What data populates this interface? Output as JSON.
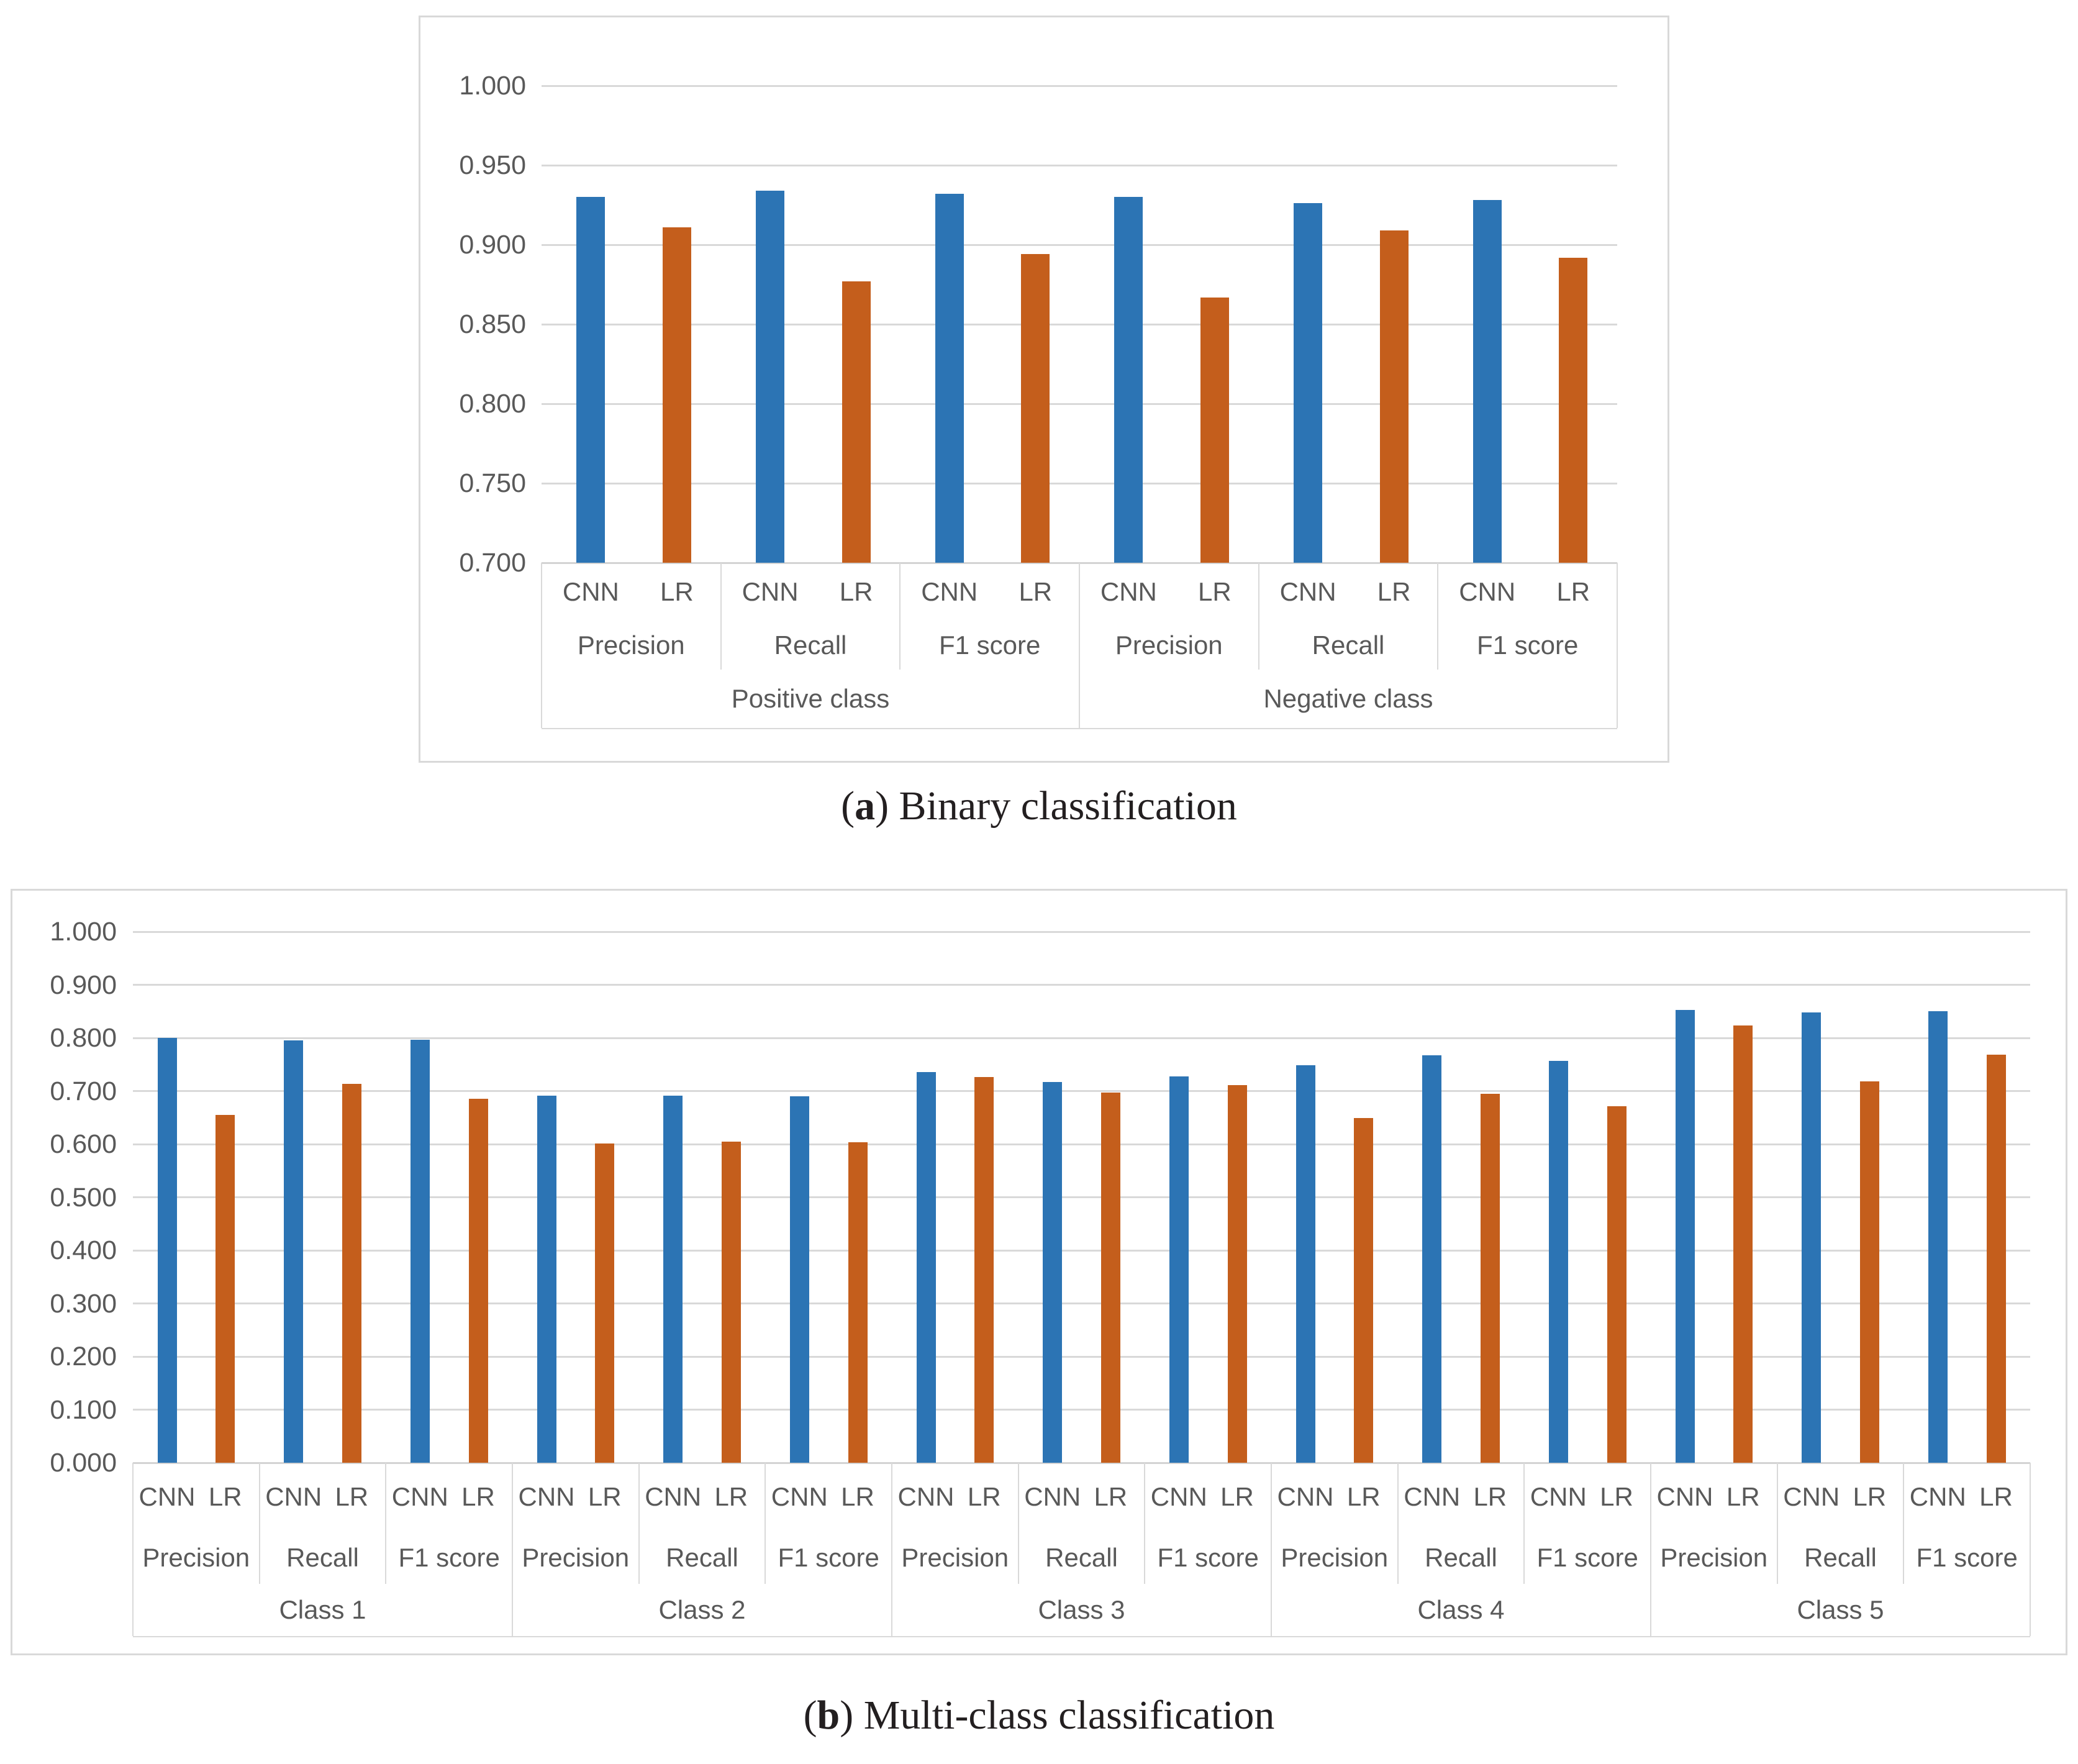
{
  "page": {
    "background": "#FFFFFF"
  },
  "captions": {
    "a": {
      "open": "(",
      "letter": "a",
      "rest": ") Binary classification"
    },
    "b": {
      "open": "(",
      "letter": "b",
      "rest": ") Multi-class classification"
    }
  },
  "chart_data": [
    {
      "id": "binary",
      "type": "bar",
      "title": "(a) Binary classification",
      "legend": "none",
      "grid": "horizontal",
      "ylim": [
        0.7,
        1.0
      ],
      "ytick_step": 0.05,
      "ytick_labels": [
        "1.000",
        "0.950",
        "0.900",
        "0.850",
        "0.800",
        "0.750",
        "0.700"
      ],
      "series": [
        {
          "name": "CNN",
          "color": "#2C74B4"
        },
        {
          "name": "LR",
          "color": "#C45E1C"
        }
      ],
      "groups": [
        {
          "label": "Positive class",
          "metrics": [
            {
              "label": "Precision",
              "values": [
                0.93,
                0.911
              ]
            },
            {
              "label": "Recall",
              "values": [
                0.934,
                0.877
              ]
            },
            {
              "label": "F1 score",
              "values": [
                0.932,
                0.894
              ]
            }
          ]
        },
        {
          "label": "Negative class",
          "metrics": [
            {
              "label": "Precision",
              "values": [
                0.93,
                0.867
              ]
            },
            {
              "label": "Recall",
              "values": [
                0.926,
                0.909
              ]
            },
            {
              "label": "F1 score",
              "values": [
                0.928,
                0.892
              ]
            }
          ]
        }
      ]
    },
    {
      "id": "multi",
      "type": "bar",
      "title": "(b) Multi-class classification",
      "legend": "none",
      "grid": "horizontal",
      "ylim": [
        0.0,
        1.0
      ],
      "ytick_step": 0.1,
      "ytick_labels": [
        "1.000",
        "0.900",
        "0.800",
        "0.700",
        "0.600",
        "0.500",
        "0.400",
        "0.300",
        "0.200",
        "0.100",
        "0.000"
      ],
      "series": [
        {
          "name": "CNN",
          "color": "#2C74B4"
        },
        {
          "name": "LR",
          "color": "#C45E1C"
        }
      ],
      "groups": [
        {
          "label": "Class 1",
          "metrics": [
            {
              "label": "Precision",
              "values": [
                0.8,
                0.655
              ]
            },
            {
              "label": "Recall",
              "values": [
                0.795,
                0.713
              ]
            },
            {
              "label": "F1 score",
              "values": [
                0.796,
                0.685
              ]
            }
          ]
        },
        {
          "label": "Class 2",
          "metrics": [
            {
              "label": "Precision",
              "values": [
                0.691,
                0.601
              ]
            },
            {
              "label": "Recall",
              "values": [
                0.691,
                0.605
              ]
            },
            {
              "label": "F1 score",
              "values": [
                0.69,
                0.603
              ]
            }
          ]
        },
        {
          "label": "Class 3",
          "metrics": [
            {
              "label": "Precision",
              "values": [
                0.736,
                0.726
              ]
            },
            {
              "label": "Recall",
              "values": [
                0.717,
                0.697
              ]
            },
            {
              "label": "F1 score",
              "values": [
                0.727,
                0.711
              ]
            }
          ]
        },
        {
          "label": "Class 4",
          "metrics": [
            {
              "label": "Precision",
              "values": [
                0.749,
                0.649
              ]
            },
            {
              "label": "Recall",
              "values": [
                0.767,
                0.695
              ]
            },
            {
              "label": "F1 score",
              "values": [
                0.757,
                0.671
              ]
            }
          ]
        },
        {
          "label": "Class 5",
          "metrics": [
            {
              "label": "Precision",
              "values": [
                0.853,
                0.823
              ]
            },
            {
              "label": "Recall",
              "values": [
                0.848,
                0.718
              ]
            },
            {
              "label": "F1 score",
              "values": [
                0.85,
                0.768
              ]
            }
          ]
        }
      ]
    }
  ]
}
